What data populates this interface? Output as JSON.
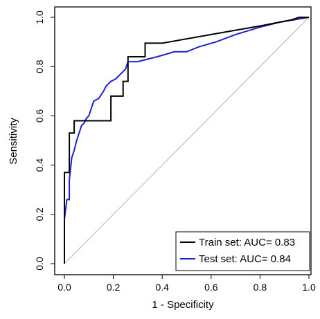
{
  "chart_data": {
    "type": "line",
    "title": "",
    "xlabel": "1 - Specificity",
    "ylabel": "Sensitivity",
    "xlim": [
      0,
      1
    ],
    "ylim": [
      0,
      1
    ],
    "xticks": [
      "0.0",
      "0.2",
      "0.4",
      "0.6",
      "0.8",
      "1.0"
    ],
    "yticks": [
      "0.0",
      "0.2",
      "0.4",
      "0.6",
      "0.8",
      "1.0"
    ],
    "grid": false,
    "legend_position": "bottom-right",
    "reference_line": {
      "color": "#b4b4b4",
      "from": [
        0,
        0
      ],
      "to": [
        1,
        1
      ]
    },
    "series": [
      {
        "name": "Train set: AUC= 0.83",
        "color": "#000000",
        "points": [
          [
            0.0,
            0.0
          ],
          [
            0.0,
            0.37
          ],
          [
            0.02,
            0.37
          ],
          [
            0.02,
            0.53
          ],
          [
            0.04,
            0.53
          ],
          [
            0.04,
            0.58
          ],
          [
            0.19,
            0.58
          ],
          [
            0.19,
            0.68
          ],
          [
            0.24,
            0.68
          ],
          [
            0.24,
            0.74
          ],
          [
            0.26,
            0.74
          ],
          [
            0.26,
            0.84
          ],
          [
            0.33,
            0.84
          ],
          [
            0.33,
            0.895
          ],
          [
            0.4,
            0.895
          ],
          [
            0.6,
            0.93
          ],
          [
            0.8,
            0.965
          ],
          [
            0.93,
            0.99
          ],
          [
            0.96,
            1.0
          ],
          [
            1.0,
            1.0
          ]
        ]
      },
      {
        "name": "Test set: AUC= 0.84",
        "color": "#1f1fd2",
        "points": [
          [
            0.0,
            0.18
          ],
          [
            0.01,
            0.26
          ],
          [
            0.02,
            0.26
          ],
          [
            0.02,
            0.34
          ],
          [
            0.03,
            0.43
          ],
          [
            0.04,
            0.46
          ],
          [
            0.05,
            0.5
          ],
          [
            0.06,
            0.53
          ],
          [
            0.07,
            0.56
          ],
          [
            0.08,
            0.57
          ],
          [
            0.09,
            0.59
          ],
          [
            0.1,
            0.6
          ],
          [
            0.11,
            0.63
          ],
          [
            0.12,
            0.66
          ],
          [
            0.14,
            0.67
          ],
          [
            0.16,
            0.7
          ],
          [
            0.17,
            0.72
          ],
          [
            0.19,
            0.74
          ],
          [
            0.21,
            0.75
          ],
          [
            0.23,
            0.77
          ],
          [
            0.25,
            0.79
          ],
          [
            0.26,
            0.82
          ],
          [
            0.3,
            0.82
          ],
          [
            0.34,
            0.83
          ],
          [
            0.38,
            0.84
          ],
          [
            0.45,
            0.86
          ],
          [
            0.5,
            0.86
          ],
          [
            0.55,
            0.88
          ],
          [
            0.62,
            0.9
          ],
          [
            0.7,
            0.93
          ],
          [
            0.8,
            0.96
          ],
          [
            0.88,
            0.98
          ],
          [
            0.94,
            0.99
          ],
          [
            1.0,
            1.0
          ]
        ]
      }
    ]
  }
}
